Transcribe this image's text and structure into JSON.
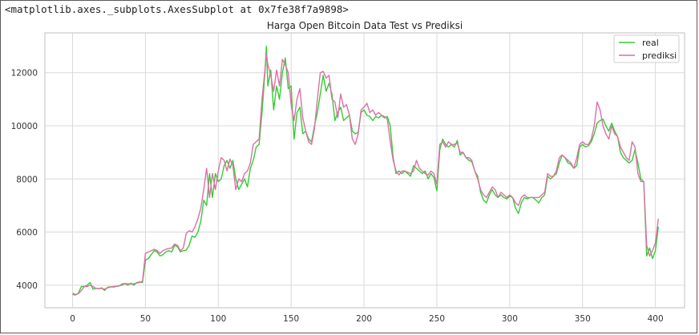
{
  "output_repr": "<matplotlib.axes._subplots.AxesSubplot at 0x7fe38f7a9898>",
  "chart_data": {
    "type": "line",
    "title": "Harga Open Bitcoin Data Test vs Prediksi",
    "xlabel": "",
    "ylabel": "",
    "xlim": [
      -19,
      420
    ],
    "ylim": [
      3150,
      13500
    ],
    "xticks": [
      0,
      50,
      100,
      150,
      200,
      250,
      300,
      350,
      400
    ],
    "yticks": [
      4000,
      6000,
      8000,
      10000,
      12000
    ],
    "grid": true,
    "legend_position": "top-right",
    "series": [
      {
        "name": "real",
        "color": "#33cc33",
        "x": [
          0,
          2,
          4,
          6,
          8,
          10,
          12,
          14,
          16,
          18,
          20,
          22,
          24,
          26,
          28,
          30,
          32,
          34,
          36,
          38,
          40,
          42,
          44,
          46,
          48,
          50,
          52,
          54,
          56,
          58,
          60,
          62,
          64,
          66,
          68,
          70,
          72,
          74,
          76,
          78,
          80,
          82,
          84,
          86,
          88,
          90,
          92,
          94,
          96,
          98,
          100,
          102,
          104,
          106,
          108,
          110,
          112,
          114,
          116,
          118,
          120,
          122,
          124,
          126,
          128,
          130,
          132,
          133,
          134,
          136,
          138,
          140,
          142,
          144,
          146,
          148,
          150,
          152,
          154,
          156,
          158,
          160,
          162,
          164,
          166,
          168,
          170,
          172,
          174,
          176,
          178,
          180,
          182,
          184,
          186,
          188,
          190,
          192,
          194,
          196,
          198,
          200,
          202,
          204,
          206,
          208,
          210,
          212,
          214,
          216,
          218,
          220,
          222,
          224,
          226,
          228,
          230,
          232,
          234,
          236,
          238,
          240,
          242,
          244,
          246,
          248,
          250,
          252,
          254,
          256,
          258,
          260,
          262,
          264,
          266,
          268,
          270,
          272,
          274,
          276,
          278,
          280,
          282,
          284,
          286,
          288,
          290,
          292,
          294,
          296,
          298,
          300,
          302,
          304,
          306,
          308,
          310,
          312,
          314,
          316,
          318,
          320,
          322,
          324,
          326,
          328,
          330,
          332,
          334,
          336,
          338,
          340,
          342,
          344,
          346,
          348,
          350,
          352,
          354,
          356,
          358,
          360,
          362,
          364,
          366,
          368,
          370,
          372,
          374,
          376,
          378,
          380,
          382,
          384,
          386,
          388,
          390,
          392,
          394,
          396,
          398,
          400,
          402
        ],
        "values": [
          3650,
          3630,
          3700,
          3950,
          3950,
          4000,
          4100,
          3850,
          3880,
          3870,
          3900,
          3800,
          3920,
          3940,
          3930,
          3950,
          3970,
          4050,
          4060,
          4000,
          4080,
          4000,
          4100,
          4120,
          4100,
          4950,
          5000,
          5150,
          5300,
          5250,
          5100,
          5150,
          5250,
          5300,
          5250,
          5500,
          5450,
          5250,
          5300,
          5320,
          5500,
          5850,
          5800,
          6000,
          6400,
          7200,
          7000,
          8200,
          7300,
          8200,
          7900,
          8000,
          8500,
          8700,
          8400,
          8700,
          8000,
          7600,
          7800,
          8000,
          7700,
          8400,
          8700,
          9200,
          9300,
          10500,
          12000,
          13000,
          11500,
          12100,
          10600,
          11500,
          11000,
          12000,
          12550,
          11400,
          11500,
          9500,
          10500,
          10700,
          9700,
          9800,
          9500,
          9400,
          10000,
          10500,
          11200,
          11900,
          11300,
          11600,
          11200,
          10200,
          10500,
          10700,
          10200,
          10300,
          10400,
          9800,
          9700,
          9750,
          10500,
          10600,
          10400,
          10350,
          10200,
          10350,
          10300,
          10400,
          10300,
          10350,
          10000,
          8800,
          8200,
          8300,
          8200,
          8300,
          8200,
          8100,
          8500,
          8400,
          8300,
          8200,
          8300,
          8000,
          8200,
          8050,
          7550,
          9100,
          9500,
          9300,
          9200,
          9300,
          9200,
          9450,
          8900,
          9000,
          8800,
          8700,
          8650,
          8300,
          8100,
          7500,
          7200,
          7100,
          7400,
          7600,
          7400,
          7300,
          7400,
          7300,
          7250,
          7350,
          7300,
          6900,
          6700,
          7100,
          7300,
          7250,
          7300,
          7300,
          7200,
          7100,
          7300,
          7400,
          8100,
          8000,
          8100,
          8200,
          8600,
          8900,
          8800,
          8600,
          8550,
          8400,
          8500,
          9200,
          9300,
          9200,
          9250,
          9400,
          9700,
          10100,
          10200,
          10250,
          10000,
          9800,
          10100,
          9800,
          9600,
          9000,
          8800,
          8700,
          8600,
          8700,
          9100,
          8600,
          8000,
          7900,
          5100,
          5400,
          5000,
          5300,
          6200
        ]
      },
      {
        "name": "prediksi",
        "color": "#dd6fa8",
        "x": [
          0,
          2,
          4,
          6,
          8,
          10,
          12,
          14,
          16,
          18,
          20,
          22,
          24,
          26,
          28,
          30,
          32,
          34,
          36,
          38,
          40,
          42,
          44,
          46,
          48,
          50,
          52,
          54,
          56,
          58,
          60,
          62,
          64,
          66,
          68,
          70,
          72,
          74,
          76,
          78,
          80,
          82,
          84,
          86,
          88,
          90,
          92,
          94,
          96,
          98,
          100,
          102,
          104,
          106,
          108,
          110,
          112,
          114,
          116,
          118,
          120,
          122,
          124,
          126,
          128,
          130,
          132,
          133,
          134,
          136,
          138,
          140,
          142,
          144,
          146,
          148,
          150,
          152,
          154,
          156,
          158,
          160,
          162,
          164,
          166,
          168,
          170,
          172,
          174,
          176,
          178,
          180,
          182,
          184,
          186,
          188,
          190,
          192,
          194,
          196,
          198,
          200,
          202,
          204,
          206,
          208,
          210,
          212,
          214,
          216,
          218,
          220,
          222,
          224,
          226,
          228,
          230,
          232,
          234,
          236,
          238,
          240,
          242,
          244,
          246,
          248,
          250,
          252,
          254,
          256,
          258,
          260,
          262,
          264,
          266,
          268,
          270,
          272,
          274,
          276,
          278,
          280,
          282,
          284,
          286,
          288,
          290,
          292,
          294,
          296,
          298,
          300,
          302,
          304,
          306,
          308,
          310,
          312,
          314,
          316,
          318,
          320,
          322,
          324,
          326,
          328,
          330,
          332,
          334,
          336,
          338,
          340,
          342,
          344,
          346,
          348,
          350,
          352,
          354,
          356,
          358,
          360,
          362,
          364,
          366,
          368,
          370,
          372,
          374,
          376,
          378,
          380,
          382,
          384,
          386,
          388,
          390,
          392,
          394,
          396,
          398,
          400,
          402
        ],
        "values": [
          3700,
          3650,
          3680,
          3800,
          3950,
          3950,
          4000,
          3950,
          3880,
          3870,
          3880,
          3850,
          3900,
          3930,
          3950,
          3960,
          3980,
          4000,
          4060,
          4050,
          4050,
          4050,
          4080,
          4100,
          4150,
          5200,
          5250,
          5300,
          5350,
          5300,
          5200,
          5300,
          5350,
          5380,
          5400,
          5550,
          5500,
          5300,
          5400,
          5950,
          6050,
          6000,
          6200,
          6500,
          6900,
          7600,
          8400,
          7300,
          8200,
          7600,
          8300,
          8800,
          8700,
          8300,
          8750,
          8500,
          7600,
          8000,
          7900,
          8200,
          8300,
          8600,
          9300,
          9400,
          9500,
          11000,
          12100,
          12700,
          12300,
          11900,
          11300,
          12100,
          11500,
          12500,
          12300,
          12000,
          10800,
          10200,
          11000,
          11400,
          10300,
          9800,
          9400,
          9300,
          9900,
          11000,
          12000,
          12050,
          11800,
          11900,
          11000,
          10900,
          10300,
          11200,
          10700,
          10800,
          10400,
          9500,
          9300,
          9700,
          10600,
          10700,
          10850,
          10500,
          10600,
          10400,
          10500,
          10400,
          10350,
          10250,
          9400,
          8700,
          8300,
          8150,
          8300,
          8300,
          8250,
          8200,
          8300,
          8700,
          8400,
          8300,
          8200,
          8150,
          8300,
          8200,
          7800,
          9300,
          9400,
          9200,
          9400,
          9300,
          9300,
          9350,
          9000,
          9000,
          8800,
          8800,
          8700,
          8300,
          8000,
          7600,
          7400,
          7300,
          7500,
          7700,
          7600,
          7300,
          7500,
          7400,
          7300,
          7400,
          7300,
          7100,
          7000,
          7300,
          7400,
          7300,
          7300,
          7300,
          7300,
          7300,
          7400,
          7500,
          8200,
          8100,
          8100,
          8300,
          8800,
          8900,
          8800,
          8700,
          8600,
          8400,
          8800,
          9300,
          9400,
          9300,
          9300,
          9500,
          10000,
          10900,
          10600,
          10000,
          9700,
          9500,
          10000,
          9700,
          9600,
          9200,
          9000,
          8800,
          8700,
          9400,
          9200,
          8200,
          7900,
          7900,
          5500,
          5100,
          5300,
          5600,
          6500
        ]
      }
    ]
  }
}
